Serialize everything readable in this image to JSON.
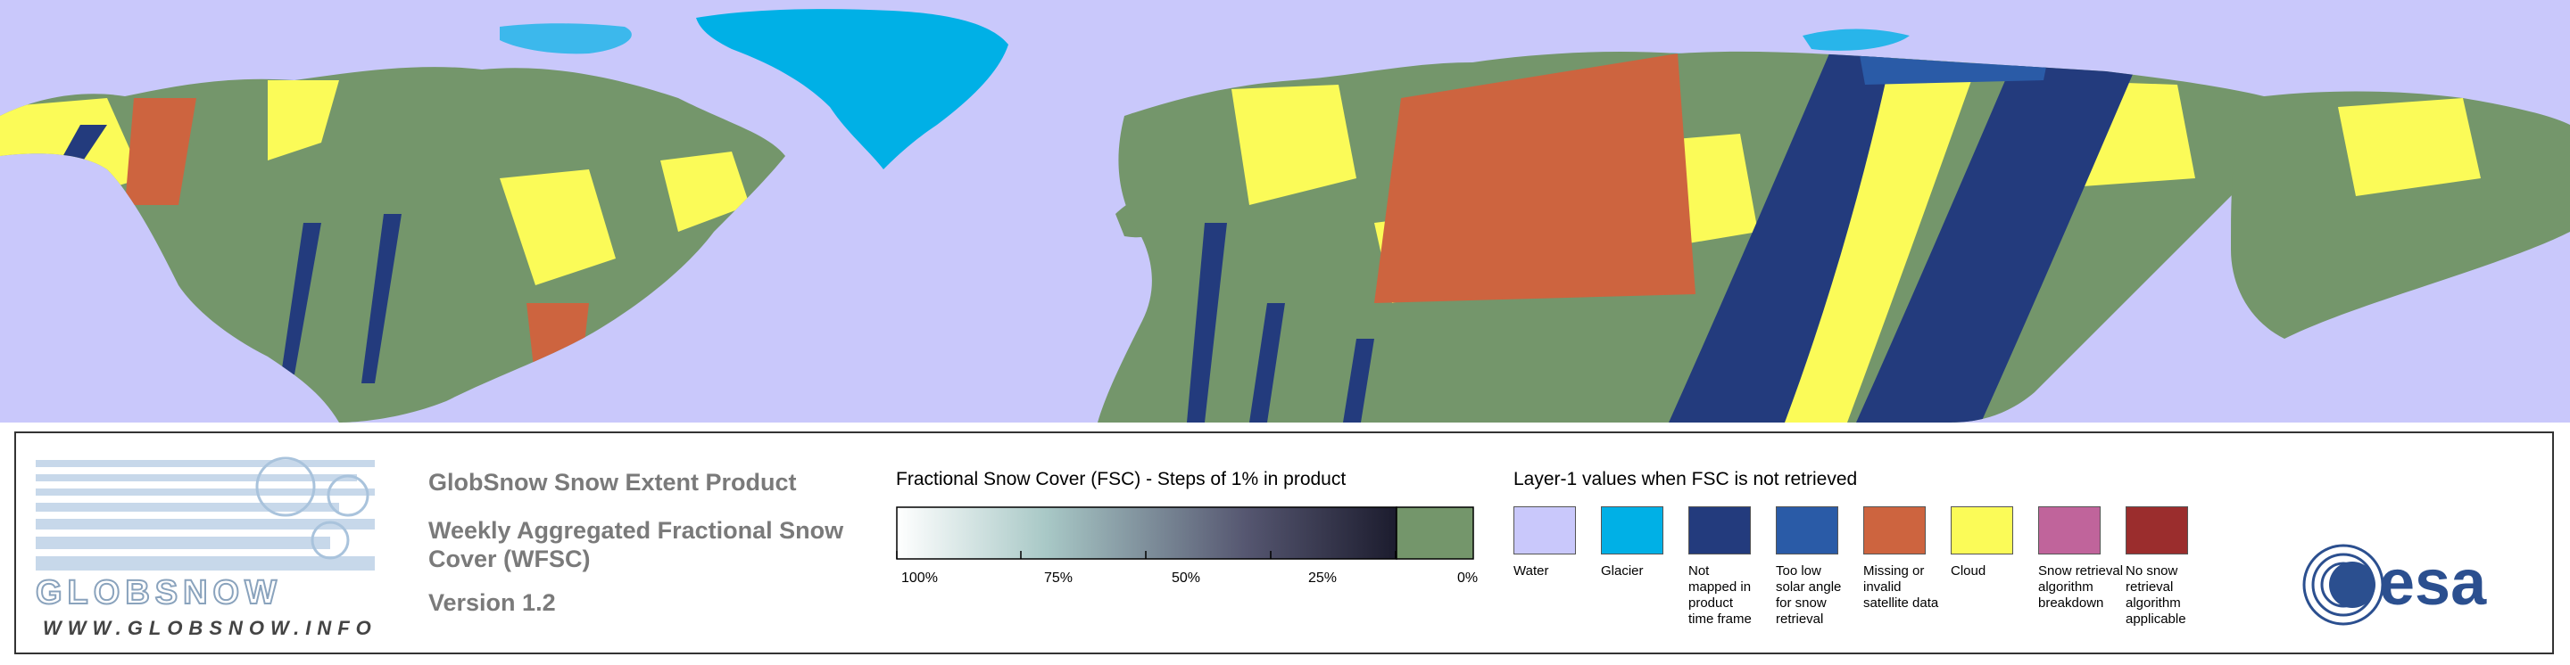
{
  "title": "GlobSnow Snow Extent Product",
  "subtitle": "Weekly Aggregated Fractional Snow Cover (WFSC)",
  "version": "Version 1.2",
  "logo": {
    "wordmark": "GLOBSNOW",
    "url": "WWW.GLOBSNOW.INFO",
    "partner": "esa"
  },
  "fsc_legend": {
    "title": "Fractional Snow Cover (FSC) - Steps of 1% in product",
    "ticks": [
      "100%",
      "75%",
      "50%",
      "25%",
      "0%"
    ],
    "gradient_start": "#ffffff",
    "gradient_end": "#1c1c2e",
    "zero_color": "#74966b"
  },
  "layer1_legend": {
    "title": "Layer-1 values when FSC is not retrieved",
    "classes": [
      {
        "label": "Water",
        "color": "#c9c8fb"
      },
      {
        "label": "Glacier",
        "color": "#00b0e6"
      },
      {
        "label": "Not mapped in product time frame",
        "color": "#233b7d"
      },
      {
        "label": "Too low solar angle for snow retrieval",
        "color": "#2a5ba7"
      },
      {
        "label": "Missing or invalid satellite data",
        "color": "#cd643f"
      },
      {
        "label": "Cloud",
        "color": "#fbfb58"
      },
      {
        "label": "Snow retrieval algorithm breakdown",
        "color": "#c0649b"
      },
      {
        "label": "No snow retrieval algorithm applicable",
        "color": "#9b2d2d"
      }
    ]
  },
  "map_colors": {
    "water": "#c9c8fb",
    "land": "#74966b",
    "glacier": "#00b0e6",
    "not_mapped": "#233b7d",
    "low_sun": "#2a5ba7",
    "missing": "#cd643f",
    "cloud": "#fbfb58"
  }
}
